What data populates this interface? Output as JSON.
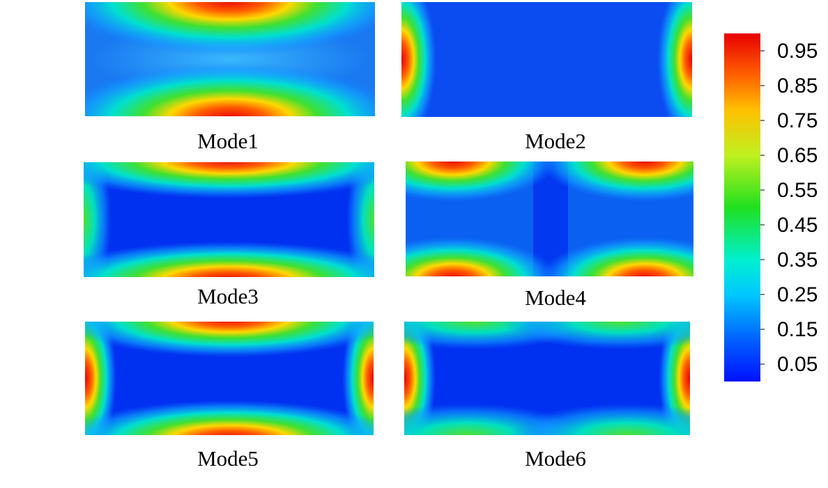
{
  "panels": [
    {
      "label": "Mode1"
    },
    {
      "label": "Mode2"
    },
    {
      "label": "Mode3"
    },
    {
      "label": "Mode4"
    },
    {
      "label": "Mode5"
    },
    {
      "label": "Mode6"
    }
  ],
  "colorbar": {
    "range": [
      0,
      1
    ],
    "ticks": [
      0.05,
      0.15,
      0.25,
      0.35,
      0.45,
      0.55,
      0.65,
      0.75,
      0.85,
      0.95
    ]
  }
}
